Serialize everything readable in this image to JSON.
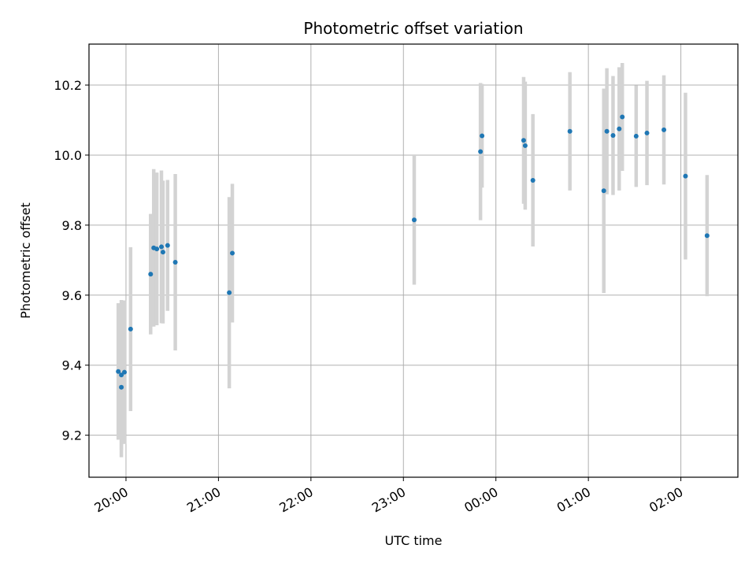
{
  "chart_data": {
    "type": "scatter",
    "title": "Photometric offset variation",
    "xlabel": "UTC time",
    "ylabel": "Photometric offset",
    "x_ticks": [
      "20:00",
      "21:00",
      "22:00",
      "23:00",
      "00:00",
      "01:00",
      "02:00"
    ],
    "y_ticks": [
      9.2,
      9.4,
      9.6,
      9.8,
      10.0,
      10.2
    ],
    "ylim": [
      9.08,
      10.317
    ],
    "xlim": [
      "19:36",
      "02:37"
    ],
    "grid": true,
    "error_bars": true,
    "colors": {
      "point": "#1f77b4",
      "errorbar": "#d3d3d3",
      "grid": "#b0b0b0"
    },
    "points": [
      {
        "time": "19:55",
        "y": 9.382,
        "err": 0.195
      },
      {
        "time": "19:57",
        "y": 9.337,
        "err": 0.2
      },
      {
        "time": "19:57",
        "y": 9.372,
        "err": 0.214
      },
      {
        "time": "19:59",
        "y": 9.38,
        "err": 0.205
      },
      {
        "time": "20:03",
        "y": 9.503,
        "err": 0.234
      },
      {
        "time": "20:16",
        "y": 9.66,
        "err": 0.172
      },
      {
        "time": "20:18",
        "y": 9.735,
        "err": 0.225
      },
      {
        "time": "20:20",
        "y": 9.732,
        "err": 0.218
      },
      {
        "time": "20:23",
        "y": 9.738,
        "err": 0.218
      },
      {
        "time": "20:24",
        "y": 9.723,
        "err": 0.204
      },
      {
        "time": "20:27",
        "y": 9.742,
        "err": 0.187
      },
      {
        "time": "20:32",
        "y": 9.694,
        "err": 0.252
      },
      {
        "time": "21:07",
        "y": 9.607,
        "err": 0.273
      },
      {
        "time": "21:09",
        "y": 9.72,
        "err": 0.198
      },
      {
        "time": "23:07",
        "y": 9.815,
        "err": 0.185
      },
      {
        "time": "23:50",
        "y": 10.01,
        "err": 0.196
      },
      {
        "time": "23:51",
        "y": 10.055,
        "err": 0.148
      },
      {
        "time": "00:18",
        "y": 10.042,
        "err": 0.181
      },
      {
        "time": "00:19",
        "y": 10.027,
        "err": 0.183
      },
      {
        "time": "00:24",
        "y": 9.928,
        "err": 0.189
      },
      {
        "time": "00:48",
        "y": 10.068,
        "err": 0.169
      },
      {
        "time": "01:10",
        "y": 9.898,
        "err": 0.292
      },
      {
        "time": "01:12",
        "y": 10.068,
        "err": 0.18
      },
      {
        "time": "01:16",
        "y": 10.056,
        "err": 0.17
      },
      {
        "time": "01:20",
        "y": 10.075,
        "err": 0.176
      },
      {
        "time": "01:22",
        "y": 10.109,
        "err": 0.154
      },
      {
        "time": "01:31",
        "y": 10.054,
        "err": 0.145
      },
      {
        "time": "01:38",
        "y": 10.063,
        "err": 0.149
      },
      {
        "time": "01:49",
        "y": 10.072,
        "err": 0.156
      },
      {
        "time": "02:03",
        "y": 9.94,
        "err": 0.238
      },
      {
        "time": "02:17",
        "y": 9.77,
        "err": 0.173
      }
    ]
  }
}
